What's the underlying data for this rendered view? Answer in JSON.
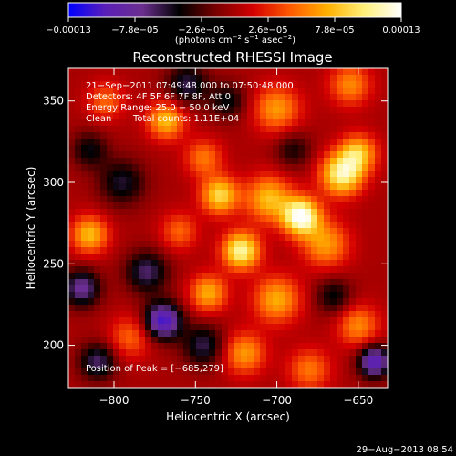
{
  "chart_data": {
    "type": "heatmap",
    "title": "Reconstructed RHESSI Image",
    "xlabel": "Heliocentric X (arcsec)",
    "ylabel": "Heliocentric Y (arcsec)",
    "xlim": [
      -828,
      -632
    ],
    "ylim": [
      174,
      370
    ],
    "x_ticks": [
      -800,
      -750,
      -700,
      -650
    ],
    "x_tick_labels": [
      "−800",
      "−750",
      "−700",
      "−650"
    ],
    "y_ticks": [
      200,
      250,
      300,
      350
    ],
    "y_tick_labels": [
      "200",
      "250",
      "300",
      "350"
    ],
    "colorbar": {
      "range": [
        -0.00013,
        0.00013
      ],
      "ticks": [
        -0.00013,
        -7.8e-05,
        -2.6e-05,
        2.6e-05,
        7.8e-05,
        0.00013
      ],
      "tick_labels": [
        "−0.00013",
        "−7.8e−05",
        "−2.6e−05",
        "2.6e−05",
        "7.8e−05",
        "0.00013"
      ],
      "unit_label_parts": [
        "(photons cm",
        "−2",
        " s",
        "−1",
        " asec",
        "−2",
        ")"
      ],
      "colormap": [
        "#0000ff",
        "#5a1fb8",
        "#6b2f8f",
        "#000000",
        "#7a0000",
        "#d40000",
        "#ff5a00",
        "#ffb000",
        "#fff07a",
        "#ffffff"
      ]
    },
    "annotations": [
      "21−Sep−2011 07:49:48.000 to 07:50:48.000",
      "Detectors: 4F 5F 6F 7F 8F, Att 0",
      "Energy Range: 25.0 − 50.0 keV",
      "Clean",
      "Total counts: 1.11E+04"
    ],
    "peak_label": "Position of Peak = [−685,279]",
    "peak": {
      "x": -685,
      "y": 279
    },
    "peak_value": 0.00013,
    "blobs": [
      {
        "x": -685,
        "y": 279,
        "v": 1.0,
        "s": 8
      },
      {
        "x": -705,
        "y": 290,
        "v": 0.6,
        "s": 10
      },
      {
        "x": -660,
        "y": 305,
        "v": 0.85,
        "s": 9
      },
      {
        "x": -650,
        "y": 318,
        "v": 0.6,
        "s": 8
      },
      {
        "x": -722,
        "y": 258,
        "v": 0.85,
        "s": 8
      },
      {
        "x": -735,
        "y": 292,
        "v": 0.7,
        "s": 8
      },
      {
        "x": -742,
        "y": 232,
        "v": 0.55,
        "s": 8
      },
      {
        "x": -768,
        "y": 338,
        "v": 0.6,
        "s": 8
      },
      {
        "x": -815,
        "y": 268,
        "v": 0.6,
        "s": 8
      },
      {
        "x": -700,
        "y": 345,
        "v": 0.5,
        "s": 10
      },
      {
        "x": -700,
        "y": 228,
        "v": 0.55,
        "s": 10
      },
      {
        "x": -670,
        "y": 262,
        "v": 0.5,
        "s": 10
      },
      {
        "x": -650,
        "y": 212,
        "v": 0.45,
        "s": 9
      },
      {
        "x": -720,
        "y": 195,
        "v": 0.5,
        "s": 9
      },
      {
        "x": -790,
        "y": 205,
        "v": 0.35,
        "s": 9
      },
      {
        "x": -805,
        "y": 350,
        "v": 0.35,
        "s": 8
      },
      {
        "x": -760,
        "y": 270,
        "v": 0.35,
        "s": 8
      },
      {
        "x": -745,
        "y": 315,
        "v": 0.4,
        "s": 8
      },
      {
        "x": -680,
        "y": 185,
        "v": 0.4,
        "s": 9
      },
      {
        "x": -655,
        "y": 360,
        "v": 0.45,
        "s": 9
      },
      {
        "x": -795,
        "y": 300,
        "v": -0.4,
        "s": 10
      },
      {
        "x": -770,
        "y": 215,
        "v": -0.85,
        "s": 8
      },
      {
        "x": -820,
        "y": 235,
        "v": -0.6,
        "s": 8
      },
      {
        "x": -755,
        "y": 360,
        "v": -0.45,
        "s": 9
      },
      {
        "x": -810,
        "y": 190,
        "v": -0.5,
        "s": 8
      },
      {
        "x": -780,
        "y": 245,
        "v": -0.5,
        "s": 9
      },
      {
        "x": -745,
        "y": 200,
        "v": -0.45,
        "s": 9
      },
      {
        "x": -640,
        "y": 190,
        "v": -0.8,
        "s": 7
      },
      {
        "x": -665,
        "y": 230,
        "v": -0.35,
        "s": 8
      },
      {
        "x": -690,
        "y": 320,
        "v": -0.3,
        "s": 8
      },
      {
        "x": -730,
        "y": 350,
        "v": -0.35,
        "s": 8
      },
      {
        "x": -815,
        "y": 320,
        "v": -0.35,
        "s": 8
      }
    ]
  },
  "timestamp": "29−Aug−2013 08:54"
}
